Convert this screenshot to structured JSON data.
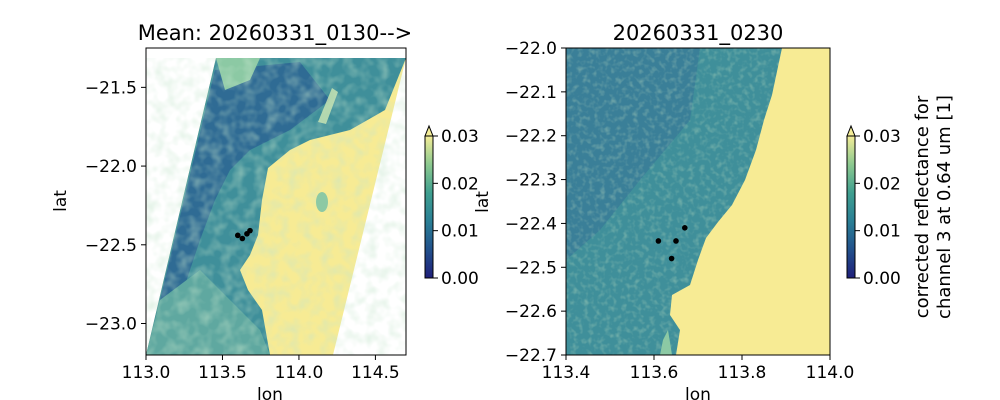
{
  "chart_data": [
    {
      "type": "heatmap",
      "title": "Mean: 20260331_0130-->",
      "xlabel": "lon",
      "ylabel": "lat",
      "xlim": [
        113.0,
        114.7
      ],
      "ylim": [
        -23.2,
        -21.25
      ],
      "xticks": [
        "113.0",
        "113.5",
        "114.0",
        "114.5"
      ],
      "yticks": [
        "−21.5",
        "−22.0",
        "−22.5",
        "−23.0"
      ],
      "xtick_values": [
        113.0,
        113.5,
        114.0,
        114.5
      ],
      "ytick_values": [
        -21.5,
        -22.0,
        -22.5,
        -23.0
      ],
      "points": [
        {
          "lon": 113.6,
          "lat": -22.44
        },
        {
          "lon": 113.63,
          "lat": -22.46
        },
        {
          "lon": 113.66,
          "lat": -22.43
        },
        {
          "lon": 113.68,
          "lat": -22.41
        }
      ],
      "colorbar": {
        "min": 0.0,
        "max": 0.03,
        "extend": "max",
        "ticks": [
          "0.00",
          "0.01",
          "0.02",
          "0.03"
        ],
        "tick_values": [
          0.0,
          0.01,
          0.02,
          0.03
        ],
        "colormap": "YlGnBu_r",
        "label": ""
      }
    },
    {
      "type": "heatmap",
      "title": "20260331_0230",
      "xlabel": "lon",
      "ylabel": "lat",
      "xlim": [
        113.4,
        114.0
      ],
      "ylim": [
        -22.7,
        -22.0
      ],
      "xticks": [
        "113.4",
        "113.6",
        "113.8",
        "114.0"
      ],
      "yticks": [
        "−22.0",
        "−22.1",
        "−22.2",
        "−22.3",
        "−22.4",
        "−22.5",
        "−22.6",
        "−22.7"
      ],
      "xtick_values": [
        113.4,
        113.6,
        113.8,
        114.0
      ],
      "ytick_values": [
        -22.0,
        -22.1,
        -22.2,
        -22.3,
        -22.4,
        -22.5,
        -22.6,
        -22.7
      ],
      "points": [
        {
          "lon": 113.61,
          "lat": -22.44
        },
        {
          "lon": 113.64,
          "lat": -22.48
        },
        {
          "lon": 113.65,
          "lat": -22.44
        },
        {
          "lon": 113.67,
          "lat": -22.41
        }
      ],
      "colorbar": {
        "min": 0.0,
        "max": 0.03,
        "extend": "max",
        "ticks": [
          "0.00",
          "0.01",
          "0.02",
          "0.03"
        ],
        "tick_values": [
          0.0,
          0.01,
          0.02,
          0.03
        ],
        "colormap": "YlGnBu_r",
        "label_line1": "corrected reflectance for",
        "label_line2": "channel 3 at 0.64 um [1]"
      }
    }
  ],
  "colors": {
    "land": "#f7eb94",
    "water_deep": "#2f6b94",
    "water_mid": "#3f9a9a",
    "water_shallow": "#8cc9a4",
    "point": "#000000"
  }
}
